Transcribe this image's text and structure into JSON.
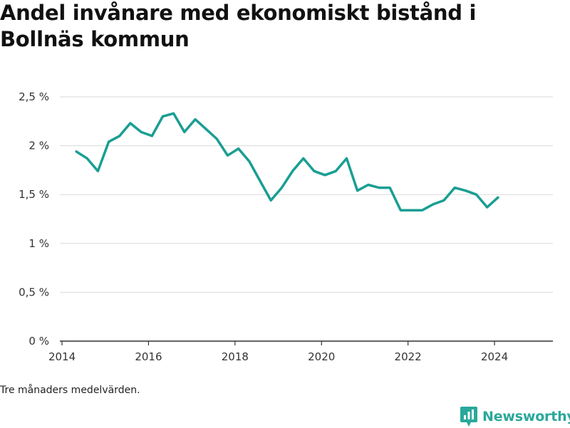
{
  "title": "Andel invånare med ekonomiskt bistånd i Bollnäs kommun",
  "caption": "Tre månaders medelvärden.",
  "brand": {
    "name": "Newsworthy",
    "icon": "newsworthy-logo-icon",
    "color": "#2aa89b"
  },
  "chart_data": {
    "type": "line",
    "title": "Andel invånare med ekonomiskt bistånd i Bollnäs kommun",
    "xlabel": "",
    "ylabel": "",
    "xlim": [
      2013.95,
      2025.35
    ],
    "ylim": [
      0,
      2.5
    ],
    "x_ticks": [
      2014,
      2016,
      2018,
      2020,
      2022,
      2024
    ],
    "y_ticks": [
      {
        "value": 0,
        "label": "0 %"
      },
      {
        "value": 0.5,
        "label": "0,5 %"
      },
      {
        "value": 1,
        "label": "1 %"
      },
      {
        "value": 1.5,
        "label": "1,5 %"
      },
      {
        "value": 2,
        "label": "2 %"
      },
      {
        "value": 2.5,
        "label": "2,5 %"
      }
    ],
    "grid": true,
    "line_color": "#1a9e93",
    "series": [
      {
        "name": "",
        "x": [
          2014.33,
          2014.58,
          2014.83,
          2015.08,
          2015.33,
          2015.58,
          2015.83,
          2016.08,
          2016.33,
          2016.58,
          2016.83,
          2017.08,
          2017.33,
          2017.58,
          2017.83,
          2018.08,
          2018.33,
          2018.58,
          2018.83,
          2019.08,
          2019.33,
          2019.58,
          2019.83,
          2020.08,
          2020.33,
          2020.58,
          2020.83,
          2021.08,
          2021.33,
          2021.58,
          2021.83,
          2022.08,
          2022.33,
          2022.58,
          2022.83,
          2023.08,
          2023.33,
          2023.58,
          2023.83,
          2024.08
        ],
        "values": [
          1.94,
          1.87,
          1.74,
          2.04,
          2.1,
          2.23,
          2.14,
          2.1,
          2.3,
          2.33,
          2.14,
          2.27,
          2.17,
          2.07,
          1.9,
          1.97,
          1.84,
          1.64,
          1.44,
          1.57,
          1.74,
          1.87,
          1.74,
          1.7,
          1.74,
          1.87,
          1.54,
          1.6,
          1.57,
          1.57,
          1.34,
          1.34,
          1.34,
          1.4,
          1.44,
          1.57,
          1.54,
          1.5,
          1.37,
          1.47
        ]
      }
    ]
  }
}
